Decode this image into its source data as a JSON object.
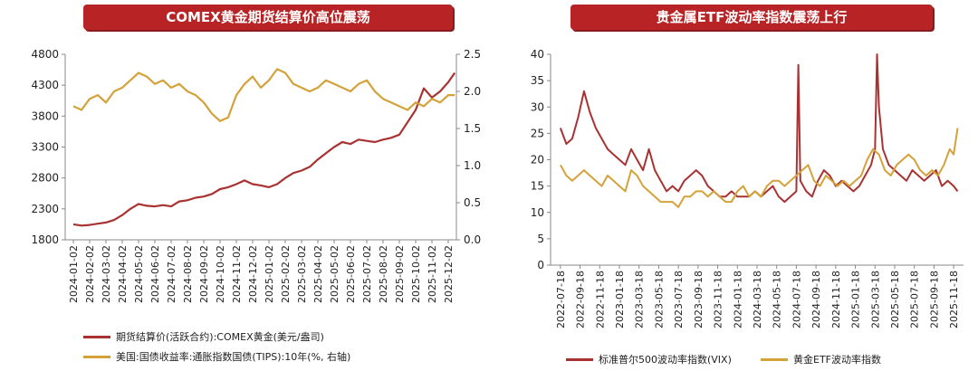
{
  "colors": {
    "accent": "#b82426",
    "series_red": "#a83232",
    "series_gold": "#d4a23a",
    "axis": "#888888"
  },
  "chart_data": [
    {
      "type": "line",
      "title": "COMEX黄金期货结算价高位震荡",
      "x_ticks": [
        "2024-01-02",
        "2024-02-02",
        "2024-03-02",
        "2024-04-02",
        "2024-05-02",
        "2024-06-02",
        "2024-07-02",
        "2024-08-02",
        "2024-09-02",
        "2024-10-02",
        "2024-11-02",
        "2024-12-02",
        "2025-01-02",
        "2025-02-02",
        "2025-03-02",
        "2025-04-02",
        "2025-05-02",
        "2025-06-02",
        "2025-07-02",
        "2025-08-02",
        "2025-09-02",
        "2025-10-02",
        "2025-11-02",
        "2025-12-02"
      ],
      "y_left_ticks": [
        "1800",
        "2300",
        "2800",
        "3300",
        "3800",
        "4300",
        "4800"
      ],
      "y_right_ticks": [
        "0.0",
        "0.5",
        "1.0",
        "1.5",
        "2.0",
        "2.5"
      ],
      "ylim_left": [
        1800,
        4800
      ],
      "ylim_right": [
        0.0,
        2.5
      ],
      "series": [
        {
          "name": "期货结算价(活跃合约):COMEX黄金(美元/盎司)",
          "axis": "left",
          "color": "#a83232",
          "x": [
            0,
            0.5,
            1,
            1.5,
            2,
            2.5,
            3,
            3.5,
            4,
            4.5,
            5,
            5.5,
            6,
            6.5,
            7,
            7.5,
            8,
            8.5,
            9,
            9.5,
            10,
            10.5,
            11,
            11.5,
            12,
            12.5,
            13,
            13.5,
            14,
            14.5,
            15,
            15.5,
            16,
            16.5,
            17,
            17.5,
            18,
            18.5,
            19,
            19.5,
            20,
            20.5,
            21,
            21.5,
            22,
            22.5,
            23,
            23.4
          ],
          "y": [
            2050,
            2030,
            2040,
            2060,
            2080,
            2120,
            2200,
            2300,
            2380,
            2350,
            2340,
            2360,
            2340,
            2420,
            2440,
            2480,
            2500,
            2540,
            2620,
            2650,
            2700,
            2760,
            2700,
            2680,
            2650,
            2700,
            2800,
            2880,
            2920,
            2980,
            3100,
            3200,
            3300,
            3380,
            3350,
            3420,
            3400,
            3380,
            3420,
            3450,
            3500,
            3700,
            3900,
            4250,
            4100,
            4200,
            4350,
            4500
          ]
        },
        {
          "name": "美国:国债收益率:通胀指数国债(TIPS):10年(%, 右轴)",
          "axis": "right",
          "color": "#d4a23a",
          "x": [
            0,
            0.5,
            1,
            1.5,
            2,
            2.5,
            3,
            3.5,
            4,
            4.5,
            5,
            5.5,
            6,
            6.5,
            7,
            7.5,
            8,
            8.5,
            9,
            9.5,
            10,
            10.5,
            11,
            11.5,
            12,
            12.5,
            13,
            13.5,
            14,
            14.5,
            15,
            15.5,
            16,
            16.5,
            17,
            17.5,
            18,
            18.5,
            19,
            19.5,
            20,
            20.5,
            21,
            21.5,
            22,
            22.5,
            23,
            23.4
          ],
          "y": [
            1.8,
            1.75,
            1.9,
            1.95,
            1.85,
            2.0,
            2.05,
            2.15,
            2.25,
            2.2,
            2.1,
            2.15,
            2.05,
            2.1,
            2.0,
            1.95,
            1.85,
            1.7,
            1.6,
            1.65,
            1.95,
            2.1,
            2.2,
            2.05,
            2.15,
            2.3,
            2.25,
            2.1,
            2.05,
            2.0,
            2.05,
            2.15,
            2.1,
            2.05,
            2.0,
            2.1,
            2.15,
            2.0,
            1.9,
            1.85,
            1.8,
            1.75,
            1.85,
            1.8,
            1.9,
            1.85,
            1.95,
            1.95
          ]
        }
      ],
      "legend_entries": [
        "期货结算价(活跃合约):COMEX黄金(美元/盎司)",
        "美国:国债收益率:通胀指数国债(TIPS):10年(%, 右轴)"
      ]
    },
    {
      "type": "line",
      "title": "贵金属ETF波动率指数震荡上行",
      "x_ticks": [
        "2022-07-18",
        "2022-09-18",
        "2022-11-18",
        "2023-01-18",
        "2023-03-18",
        "2023-05-18",
        "2023-07-18",
        "2023-09-18",
        "2023-11-18",
        "2024-01-18",
        "2024-03-18",
        "2024-05-18",
        "2024-07-18",
        "2024-09-18",
        "2024-11-18",
        "2025-01-18",
        "2025-03-18",
        "2025-05-18",
        "2025-07-18",
        "2025-09-18",
        "2025-11-18"
      ],
      "y_ticks": [
        "0",
        "5",
        "10",
        "15",
        "20",
        "25",
        "30",
        "35",
        "40"
      ],
      "ylim": [
        0,
        40
      ],
      "series": [
        {
          "name": "标准普尔500波动率指数(VIX)",
          "color": "#a83232",
          "x": [
            0,
            0.3,
            0.6,
            0.9,
            1.2,
            1.5,
            1.8,
            2.1,
            2.4,
            2.7,
            3,
            3.3,
            3.6,
            3.9,
            4.2,
            4.5,
            4.8,
            5.1,
            5.4,
            5.7,
            6,
            6.3,
            6.6,
            6.9,
            7.2,
            7.5,
            7.8,
            8.1,
            8.4,
            8.7,
            9,
            9.3,
            9.6,
            9.9,
            10.2,
            10.5,
            10.8,
            11.1,
            11.4,
            11.7,
            12,
            12.1,
            12.2,
            12.5,
            12.8,
            13.1,
            13.4,
            13.7,
            14,
            14.3,
            14.6,
            14.9,
            15.2,
            15.5,
            15.8,
            16,
            16.1,
            16.2,
            16.4,
            16.7,
            17,
            17.3,
            17.6,
            17.9,
            18.2,
            18.5,
            18.8,
            19.1,
            19.4,
            19.7,
            20,
            20.2
          ],
          "y": [
            26,
            23,
            24,
            28,
            33,
            29,
            26,
            24,
            22,
            21,
            20,
            19,
            22,
            20,
            18,
            22,
            18,
            16,
            14,
            15,
            14,
            16,
            17,
            18,
            17,
            15,
            14,
            13,
            13,
            14,
            13,
            13,
            13,
            14,
            13,
            14,
            15,
            13,
            12,
            13,
            14,
            38,
            16,
            14,
            13,
            16,
            18,
            17,
            15,
            16,
            15,
            14,
            15,
            17,
            19,
            22,
            40,
            30,
            22,
            19,
            18,
            17,
            16,
            18,
            17,
            16,
            17,
            18,
            15,
            16,
            15,
            14
          ]
        },
        {
          "name": "黄金ETF波动率指数",
          "color": "#d4a23a",
          "x": [
            0,
            0.3,
            0.6,
            0.9,
            1.2,
            1.5,
            1.8,
            2.1,
            2.4,
            2.7,
            3,
            3.3,
            3.6,
            3.9,
            4.2,
            4.5,
            4.8,
            5.1,
            5.4,
            5.7,
            6,
            6.3,
            6.6,
            6.9,
            7.2,
            7.5,
            7.8,
            8.1,
            8.4,
            8.7,
            9,
            9.3,
            9.6,
            9.9,
            10.2,
            10.5,
            10.8,
            11.1,
            11.4,
            11.7,
            12,
            12.3,
            12.6,
            12.9,
            13.2,
            13.5,
            13.8,
            14.1,
            14.4,
            14.7,
            15,
            15.3,
            15.6,
            15.9,
            16.2,
            16.5,
            16.8,
            17.1,
            17.4,
            17.7,
            18,
            18.3,
            18.6,
            18.9,
            19.2,
            19.5,
            19.8,
            20,
            20.2
          ],
          "y": [
            19,
            17,
            16,
            17,
            18,
            17,
            16,
            15,
            17,
            16,
            15,
            14,
            18,
            17,
            15,
            14,
            13,
            12,
            12,
            12,
            11,
            13,
            13,
            14,
            14,
            13,
            14,
            13,
            12,
            12,
            14,
            15,
            13,
            14,
            13,
            15,
            16,
            16,
            15,
            16,
            17,
            18,
            19,
            16,
            15,
            17,
            16,
            15,
            16,
            15,
            16,
            17,
            20,
            22,
            21,
            18,
            17,
            19,
            20,
            21,
            20,
            18,
            17,
            18,
            17,
            19,
            22,
            21,
            26
          ]
        }
      ],
      "legend_entries": [
        "标准普尔500波动率指数(VIX)",
        "黄金ETF波动率指数"
      ]
    }
  ]
}
